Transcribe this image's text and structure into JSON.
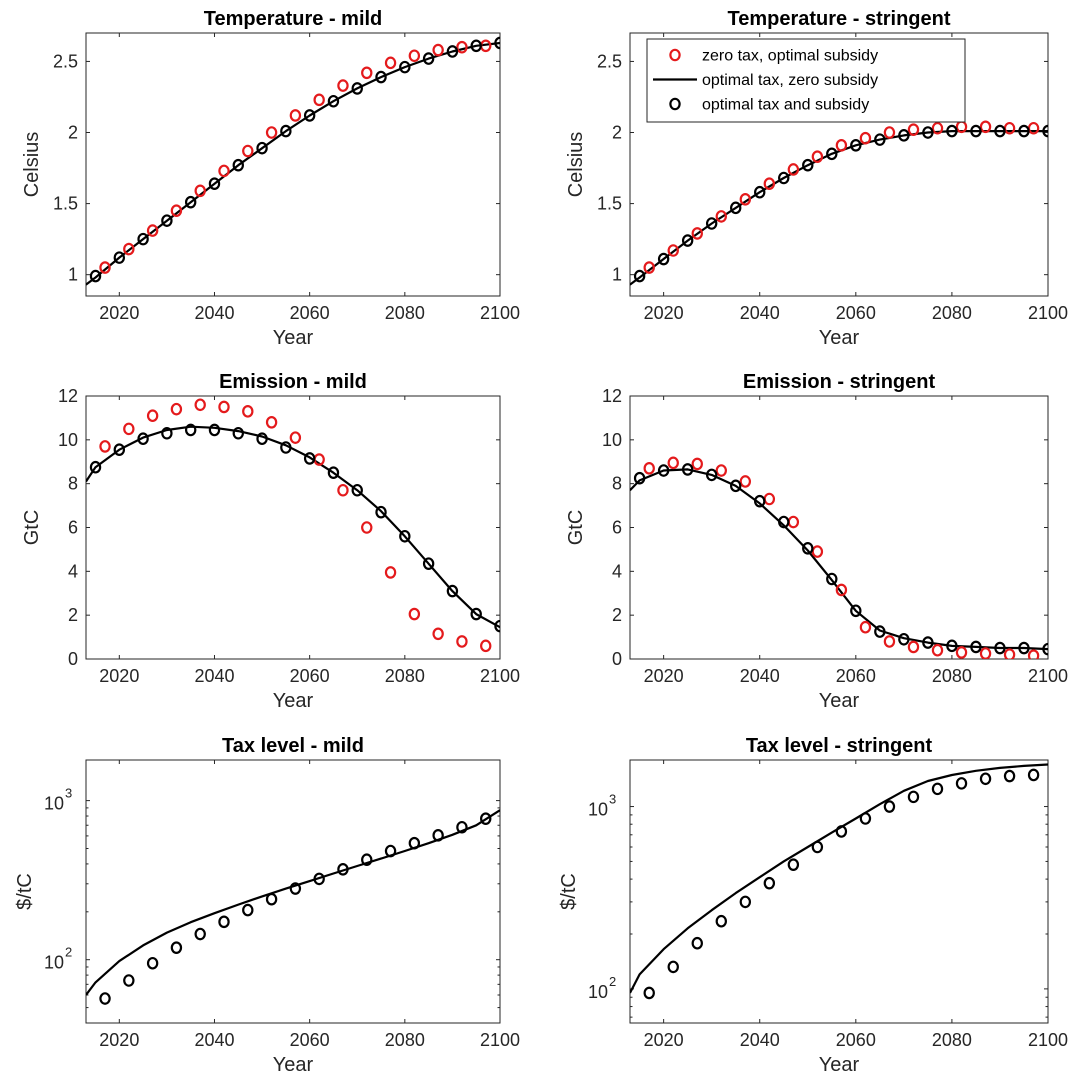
{
  "legend": {
    "entries": [
      {
        "label": "zero tax, optimal subsidy",
        "style": "circle",
        "color": "#e41a1c"
      },
      {
        "label": "optimal tax, zero subsidy",
        "style": "line",
        "color": "#000000"
      },
      {
        "label": "optimal tax and subsidy",
        "style": "circle",
        "color": "#000000"
      }
    ]
  },
  "chart_data": [
    {
      "type": "line",
      "title": "Temperature - mild",
      "xlabel": "Year",
      "ylabel": "Celsius",
      "xlim": [
        2013,
        2100
      ],
      "ylim": [
        0.85,
        2.7
      ],
      "yscale": "linear",
      "xticks": [
        "2020",
        "2040",
        "2060",
        "2080",
        "2100"
      ],
      "yticks": [
        "1",
        "1.5",
        "2",
        "2.5"
      ],
      "legend": false,
      "series": [
        {
          "role": "marker",
          "color": "#e41a1c",
          "x": [
            2017,
            2022,
            2027,
            2032,
            2037,
            2042,
            2047,
            2052,
            2057,
            2062,
            2067,
            2072,
            2077,
            2082,
            2087,
            2092,
            2097
          ],
          "y": [
            1.05,
            1.18,
            1.31,
            1.45,
            1.59,
            1.73,
            1.87,
            2.0,
            2.12,
            2.23,
            2.33,
            2.42,
            2.49,
            2.54,
            2.58,
            2.6,
            2.61
          ]
        },
        {
          "role": "line",
          "color": "#000000",
          "x": [
            2013,
            2015,
            2020,
            2025,
            2030,
            2035,
            2040,
            2045,
            2050,
            2055,
            2060,
            2065,
            2070,
            2075,
            2080,
            2085,
            2090,
            2095,
            2100
          ],
          "y": [
            0.93,
            0.98,
            1.12,
            1.25,
            1.38,
            1.51,
            1.64,
            1.77,
            1.89,
            2.01,
            2.12,
            2.22,
            2.31,
            2.39,
            2.46,
            2.52,
            2.57,
            2.61,
            2.63
          ]
        },
        {
          "role": "marker",
          "color": "#000000",
          "x": [
            2015,
            2020,
            2025,
            2030,
            2035,
            2040,
            2045,
            2050,
            2055,
            2060,
            2065,
            2070,
            2075,
            2080,
            2085,
            2090,
            2095,
            2100
          ],
          "y": [
            0.99,
            1.12,
            1.25,
            1.38,
            1.51,
            1.64,
            1.77,
            1.89,
            2.01,
            2.12,
            2.22,
            2.31,
            2.39,
            2.46,
            2.52,
            2.57,
            2.61,
            2.63
          ]
        }
      ]
    },
    {
      "type": "line",
      "title": "Temperature - stringent",
      "xlabel": "Year",
      "ylabel": "Celsius",
      "xlim": [
        2013,
        2100
      ],
      "ylim": [
        0.85,
        2.7
      ],
      "yscale": "linear",
      "xticks": [
        "2020",
        "2040",
        "2060",
        "2080",
        "2100"
      ],
      "yticks": [
        "1",
        "1.5",
        "2",
        "2.5"
      ],
      "legend": true,
      "legend_position": "top-right",
      "series": [
        {
          "role": "marker",
          "color": "#e41a1c",
          "x": [
            2017,
            2022,
            2027,
            2032,
            2037,
            2042,
            2047,
            2052,
            2057,
            2062,
            2067,
            2072,
            2077,
            2082,
            2087,
            2092,
            2097
          ],
          "y": [
            1.05,
            1.17,
            1.29,
            1.41,
            1.53,
            1.64,
            1.74,
            1.83,
            1.91,
            1.96,
            2.0,
            2.02,
            2.03,
            2.04,
            2.04,
            2.03,
            2.03
          ]
        },
        {
          "role": "line",
          "color": "#000000",
          "x": [
            2013,
            2015,
            2020,
            2025,
            2030,
            2035,
            2040,
            2045,
            2050,
            2055,
            2060,
            2065,
            2070,
            2075,
            2080,
            2085,
            2090,
            2095,
            2100
          ],
          "y": [
            0.93,
            0.98,
            1.11,
            1.24,
            1.36,
            1.47,
            1.58,
            1.68,
            1.77,
            1.85,
            1.91,
            1.95,
            1.98,
            2.0,
            2.01,
            2.01,
            2.01,
            2.01,
            2.01
          ]
        },
        {
          "role": "marker",
          "color": "#000000",
          "x": [
            2015,
            2020,
            2025,
            2030,
            2035,
            2040,
            2045,
            2050,
            2055,
            2060,
            2065,
            2070,
            2075,
            2080,
            2085,
            2090,
            2095,
            2100
          ],
          "y": [
            0.99,
            1.11,
            1.24,
            1.36,
            1.47,
            1.58,
            1.68,
            1.77,
            1.85,
            1.91,
            1.95,
            1.98,
            2.0,
            2.01,
            2.01,
            2.01,
            2.01,
            2.01
          ]
        }
      ]
    },
    {
      "type": "line",
      "title": "Emission - mild",
      "xlabel": "Year",
      "ylabel": "GtC",
      "xlim": [
        2013,
        2100
      ],
      "ylim": [
        0,
        12
      ],
      "yscale": "linear",
      "xticks": [
        "2020",
        "2040",
        "2060",
        "2080",
        "2100"
      ],
      "yticks": [
        "0",
        "2",
        "4",
        "6",
        "8",
        "10",
        "12"
      ],
      "legend": false,
      "series": [
        {
          "role": "marker",
          "color": "#e41a1c",
          "x": [
            2017,
            2022,
            2027,
            2032,
            2037,
            2042,
            2047,
            2052,
            2057,
            2062,
            2067,
            2072,
            2077,
            2082,
            2087,
            2092,
            2097
          ],
          "y": [
            9.7,
            10.5,
            11.1,
            11.4,
            11.6,
            11.5,
            11.3,
            10.8,
            10.1,
            9.1,
            7.7,
            6.0,
            3.95,
            2.05,
            1.15,
            0.8,
            0.6
          ]
        },
        {
          "role": "line",
          "color": "#000000",
          "x": [
            2013,
            2015,
            2020,
            2025,
            2030,
            2035,
            2040,
            2045,
            2050,
            2055,
            2060,
            2065,
            2070,
            2075,
            2080,
            2085,
            2090,
            2095,
            2100
          ],
          "y": [
            8.1,
            8.75,
            9.55,
            10.1,
            10.45,
            10.6,
            10.55,
            10.4,
            10.15,
            9.75,
            9.2,
            8.5,
            7.7,
            6.75,
            5.6,
            4.35,
            3.1,
            2.05,
            1.45
          ]
        },
        {
          "role": "marker",
          "color": "#000000",
          "x": [
            2015,
            2020,
            2025,
            2030,
            2035,
            2040,
            2045,
            2050,
            2055,
            2060,
            2065,
            2070,
            2075,
            2080,
            2085,
            2090,
            2095,
            2100
          ],
          "y": [
            8.75,
            9.55,
            10.05,
            10.3,
            10.45,
            10.45,
            10.3,
            10.05,
            9.65,
            9.15,
            8.5,
            7.7,
            6.7,
            5.6,
            4.35,
            3.1,
            2.05,
            1.5
          ]
        }
      ]
    },
    {
      "type": "line",
      "title": "Emission - stringent",
      "xlabel": "Year",
      "ylabel": "GtC",
      "xlim": [
        2013,
        2100
      ],
      "ylim": [
        0,
        12
      ],
      "yscale": "linear",
      "xticks": [
        "2020",
        "2040",
        "2060",
        "2080",
        "2100"
      ],
      "yticks": [
        "0",
        "2",
        "4",
        "6",
        "8",
        "10",
        "12"
      ],
      "legend": false,
      "series": [
        {
          "role": "marker",
          "color": "#e41a1c",
          "x": [
            2017,
            2022,
            2027,
            2032,
            2037,
            2042,
            2047,
            2052,
            2057,
            2062,
            2067,
            2072,
            2077,
            2082,
            2087,
            2092,
            2097
          ],
          "y": [
            8.7,
            8.95,
            8.9,
            8.6,
            8.1,
            7.3,
            6.25,
            4.9,
            3.15,
            1.45,
            0.8,
            0.55,
            0.4,
            0.3,
            0.25,
            0.2,
            0.15
          ]
        },
        {
          "role": "line",
          "color": "#000000",
          "x": [
            2013,
            2015,
            2020,
            2025,
            2030,
            2035,
            2040,
            2045,
            2050,
            2055,
            2060,
            2065,
            2070,
            2075,
            2080,
            2085,
            2090,
            2095,
            2100
          ],
          "y": [
            7.7,
            8.15,
            8.6,
            8.65,
            8.4,
            7.9,
            7.1,
            6.1,
            4.95,
            3.6,
            2.2,
            1.3,
            0.95,
            0.75,
            0.6,
            0.55,
            0.5,
            0.5,
            0.45
          ]
        },
        {
          "role": "marker",
          "color": "#000000",
          "x": [
            2015,
            2020,
            2025,
            2030,
            2035,
            2040,
            2045,
            2050,
            2055,
            2060,
            2065,
            2070,
            2075,
            2080,
            2085,
            2090,
            2095,
            2100
          ],
          "y": [
            8.25,
            8.6,
            8.65,
            8.4,
            7.9,
            7.2,
            6.25,
            5.05,
            3.65,
            2.2,
            1.25,
            0.9,
            0.75,
            0.6,
            0.55,
            0.5,
            0.5,
            0.45
          ]
        }
      ]
    },
    {
      "type": "line",
      "title": "Tax level - mild",
      "xlabel": "Year",
      "ylabel": "$/tC",
      "xlim": [
        2013,
        2100
      ],
      "ylim": [
        40,
        1800
      ],
      "yscale": "log",
      "xticks": [
        "2020",
        "2040",
        "2060",
        "2080",
        "2100"
      ],
      "yticks": [
        {
          "base": "10",
          "exp": "2",
          "value": 100
        },
        {
          "base": "10",
          "exp": "3",
          "value": 1000
        }
      ],
      "legend": false,
      "series": [
        {
          "role": "line",
          "color": "#000000",
          "x": [
            2013,
            2015,
            2020,
            2025,
            2030,
            2035,
            2040,
            2045,
            2050,
            2055,
            2060,
            2065,
            2070,
            2075,
            2080,
            2085,
            2090,
            2095,
            2100
          ],
          "y": [
            60,
            72,
            98,
            123,
            148,
            172,
            196,
            222,
            250,
            280,
            312,
            348,
            388,
            432,
            482,
            540,
            610,
            700,
            870
          ]
        },
        {
          "role": "marker",
          "color": "#000000",
          "x": [
            2017,
            2022,
            2027,
            2032,
            2037,
            2042,
            2047,
            2052,
            2057,
            2062,
            2067,
            2072,
            2077,
            2082,
            2087,
            2092,
            2097
          ],
          "y": [
            57,
            74,
            95,
            119,
            145,
            173,
            205,
            240,
            280,
            322,
            370,
            425,
            482,
            540,
            605,
            680,
            770
          ]
        }
      ]
    },
    {
      "type": "line",
      "title": "Tax level - stringent",
      "xlabel": "Year",
      "ylabel": "$/tC",
      "xlim": [
        2013,
        2100
      ],
      "ylim": [
        65,
        1800
      ],
      "yscale": "log",
      "xticks": [
        "2020",
        "2040",
        "2060",
        "2080",
        "2100"
      ],
      "yticks": [
        {
          "base": "10",
          "exp": "2",
          "value": 100
        },
        {
          "base": "10",
          "exp": "3",
          "value": 1000
        }
      ],
      "legend": false,
      "series": [
        {
          "role": "line",
          "color": "#000000",
          "x": [
            2013,
            2015,
            2020,
            2025,
            2030,
            2035,
            2040,
            2045,
            2050,
            2055,
            2060,
            2065,
            2070,
            2075,
            2080,
            2085,
            2090,
            2095,
            2100
          ],
          "y": [
            95,
            120,
            165,
            215,
            270,
            335,
            410,
            500,
            600,
            720,
            860,
            1030,
            1220,
            1380,
            1490,
            1570,
            1630,
            1670,
            1700
          ]
        },
        {
          "role": "marker",
          "color": "#000000",
          "x": [
            2017,
            2022,
            2027,
            2032,
            2037,
            2042,
            2047,
            2052,
            2057,
            2062,
            2067,
            2072,
            2077,
            2082,
            2087,
            2092,
            2097
          ],
          "y": [
            95,
            132,
            178,
            235,
            300,
            380,
            480,
            600,
            730,
            860,
            1000,
            1130,
            1250,
            1340,
            1420,
            1470,
            1490
          ]
        }
      ]
    }
  ]
}
